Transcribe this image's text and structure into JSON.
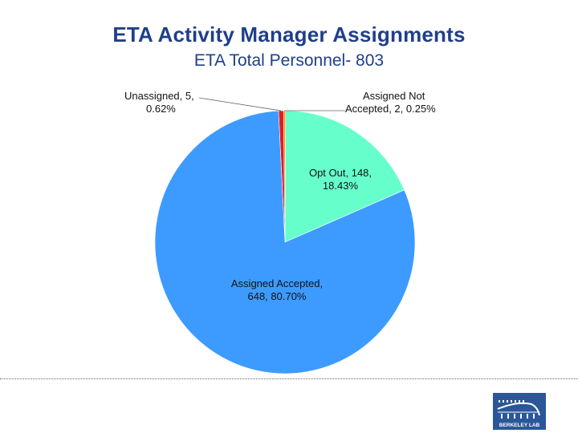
{
  "header": {
    "title": "ETA Activity Manager Assignments",
    "subtitle": "ETA Total Personnel- 803"
  },
  "chart_data": {
    "type": "pie",
    "title": "ETA Activity Manager Assignments",
    "subtitle": "ETA Total Personnel- 803",
    "total": 803,
    "slices": [
      {
        "name": "Unassigned",
        "value": 5,
        "percent": 0.62,
        "color": "#e01e1e",
        "label_lines": [
          "Unassigned, 5,",
          "0.62%"
        ]
      },
      {
        "name": "Assigned Not Accepted",
        "value": 2,
        "percent": 0.25,
        "color": "#f28a1e",
        "label_lines": [
          "Assigned Not",
          "Accepted, 2, 0.25%"
        ]
      },
      {
        "name": "Opt Out",
        "value": 148,
        "percent": 18.43,
        "color": "#66ffcc",
        "label_lines": [
          "Opt Out, 148,",
          "18.43%"
        ]
      },
      {
        "name": "Assigned Accepted",
        "value": 648,
        "percent": 80.7,
        "color": "#3d9bff",
        "label_lines": [
          "Assigned Accepted,",
          "648, 80.70%"
        ]
      }
    ]
  },
  "logo": {
    "text": "BERKELEY LAB",
    "color": "#2b5798"
  }
}
